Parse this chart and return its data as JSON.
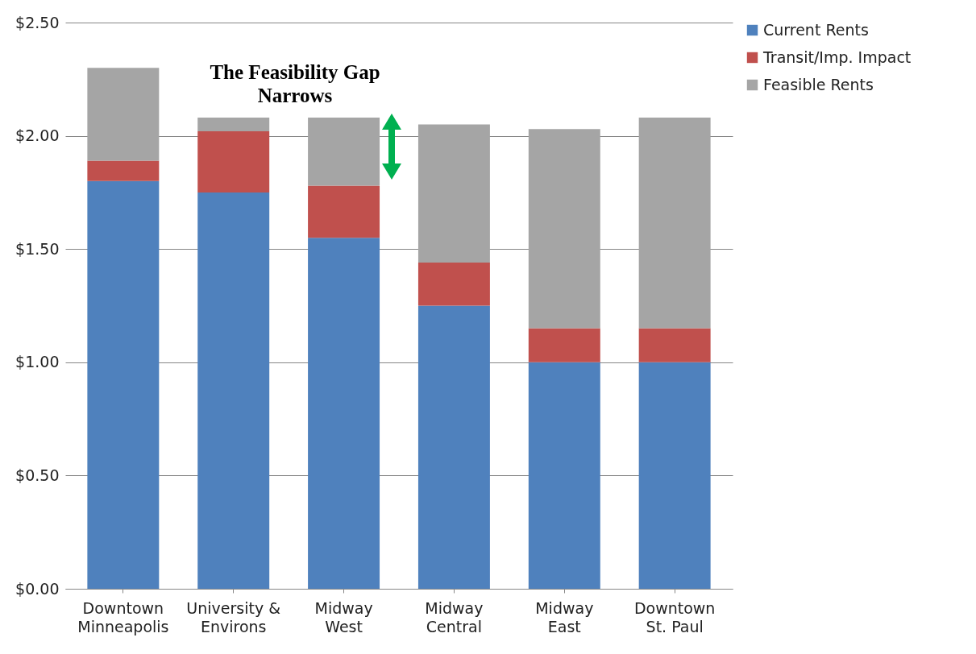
{
  "chart_data": {
    "type": "bar",
    "title": "The Feasibility Gap\nNarrows",
    "stacked": true,
    "categories": [
      "Downtown\nMinneapolis",
      "University &\nEnvirons",
      "Midway\nWest",
      "Midway\nCentral",
      "Midway\nEast",
      "Downtown\nSt. Paul"
    ],
    "series": [
      {
        "name": "Current Rents",
        "color": "#4f81bd",
        "values": [
          1.8,
          1.75,
          1.55,
          1.25,
          1.0,
          1.0
        ]
      },
      {
        "name": "Transit/Imp. Impact",
        "color": "#c0504d",
        "values": [
          0.09,
          0.27,
          0.23,
          0.19,
          0.15,
          0.15
        ]
      },
      {
        "name": "Feasible Rents",
        "color": "#a5a5a5",
        "values": [
          0.41,
          0.06,
          0.3,
          0.61,
          0.88,
          0.93
        ]
      }
    ],
    "ylim": [
      0,
      2.5
    ],
    "yticks": [
      {
        "value": 0,
        "label": "$0.00"
      },
      {
        "value": 0.5,
        "label": "$0.50"
      },
      {
        "value": 1,
        "label": "$1.00"
      },
      {
        "value": 1.5,
        "label": "$1.50"
      },
      {
        "value": 2,
        "label": "$2.00"
      },
      {
        "value": 2.5,
        "label": "$2.50"
      }
    ],
    "grid": "y",
    "legend": "right"
  }
}
